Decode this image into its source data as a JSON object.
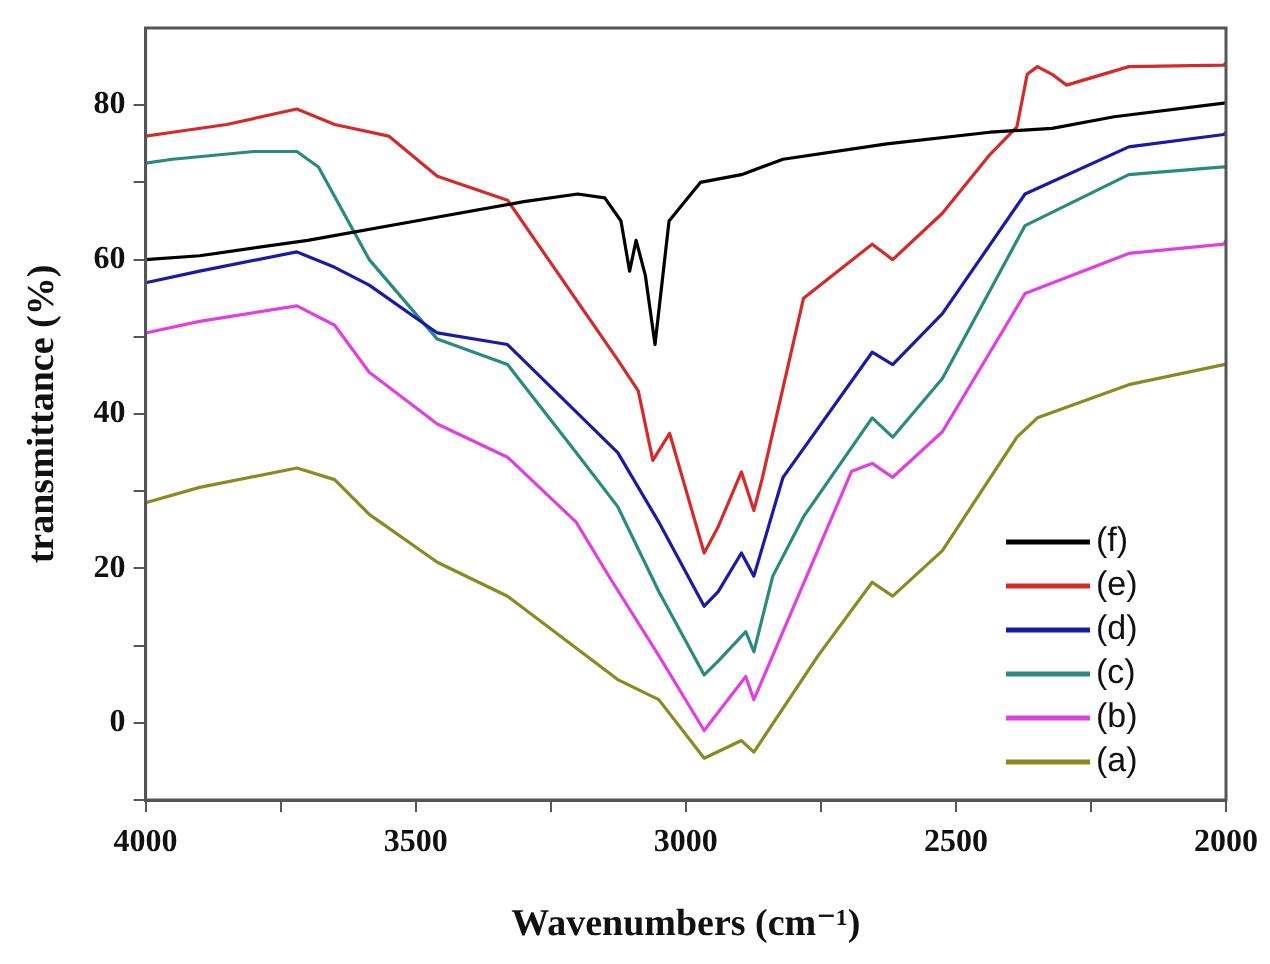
{
  "chart_data": {
    "type": "line",
    "xlabel": "Wavenumbers (cm⁻¹)",
    "ylabel": "transmittance (%)",
    "xlim": [
      4000,
      2000
    ],
    "xticks": [
      4000,
      {
        "value": 3750,
        "label": null
      },
      3500,
      {
        "value": 3250,
        "label": null
      },
      3000,
      {
        "value": 2750,
        "label": null
      },
      2500,
      {
        "value": 2250,
        "label": null
      },
      2000
    ],
    "ylim": [
      -10,
      90
    ],
    "yticks": [
      {
        "value": -10,
        "label": null
      },
      0,
      {
        "value": 10,
        "label": null
      },
      20,
      {
        "value": 30,
        "label": null
      },
      40,
      {
        "value": 50,
        "label": null
      },
      60,
      {
        "value": 70,
        "label": null
      },
      80
    ],
    "grid": false,
    "legend": "bottom right",
    "marker": "none",
    "line_style": "solid",
    "series": [
      {
        "name": "(f)",
        "color": "#000000",
        "x": [
          4000,
          3900,
          3700,
          3500,
          3300,
          3200,
          3150,
          3120,
          3104,
          3092,
          3075,
          3057,
          3031,
          2973,
          2897,
          2820,
          2628,
          2437,
          2322,
          2207,
          2000
        ],
        "values": [
          60,
          60.5,
          62.5,
          65,
          67.5,
          68.5,
          68,
          65,
          58.5,
          62.5,
          58,
          49,
          65,
          70,
          71,
          73,
          75,
          76.5,
          77,
          78.5,
          80.3
        ]
      },
      {
        "name": "(e)",
        "color": "#d42a2a",
        "x": [
          4000,
          3950,
          3850,
          3720,
          3650,
          3550,
          3460,
          3330,
          3126,
          3088,
          3061,
          3030,
          2966,
          2940,
          2897,
          2874,
          2858,
          2782,
          2655,
          2617,
          2525,
          2437,
          2387,
          2368,
          2349,
          2322,
          2295,
          2180,
          2004,
          2000
        ],
        "values": [
          76,
          76.5,
          77.5,
          79.5,
          77.5,
          76,
          70.8,
          67.7,
          47,
          43,
          34,
          37.5,
          22,
          25.4,
          32.5,
          27.5,
          31.8,
          55,
          62,
          60,
          66,
          73.6,
          77.2,
          84,
          85,
          84,
          82.6,
          85,
          85.2,
          85.5
        ]
      },
      {
        "name": "(d)",
        "color": "#1a1aa8",
        "x": [
          4000,
          3900,
          3720,
          3650,
          3586,
          3460,
          3330,
          3126,
          3050,
          2966,
          2940,
          2897,
          2874,
          2820,
          2655,
          2617,
          2525,
          2372,
          2180,
          2004,
          2000
        ],
        "values": [
          57,
          58.5,
          61,
          59,
          56.7,
          50.5,
          49,
          35,
          26,
          15.1,
          17,
          22,
          19,
          31.8,
          48,
          46.4,
          53,
          68.5,
          74.6,
          76.2,
          76.5
        ]
      },
      {
        "name": "(c)",
        "color": "#2a8a80",
        "x": [
          4000,
          3950,
          3800,
          3720,
          3680,
          3586,
          3460,
          3330,
          3203,
          3126,
          3050,
          2966,
          2940,
          2889,
          2874,
          2839,
          2782,
          2655,
          2617,
          2525,
          2372,
          2180,
          2004,
          2000
        ],
        "values": [
          72.5,
          73,
          74,
          74,
          72,
          60,
          49.7,
          46.4,
          35,
          28,
          17,
          6.2,
          8,
          11.8,
          9.2,
          19,
          26.7,
          39.5,
          37,
          44.6,
          64.4,
          71,
          72,
          72
        ]
      },
      {
        "name": "(b)",
        "color": "#e040e0",
        "x": [
          4000,
          3900,
          3720,
          3650,
          3586,
          3460,
          3330,
          3203,
          3138,
          3050,
          2966,
          2889,
          2874,
          2693,
          2655,
          2617,
          2525,
          2372,
          2180,
          2004,
          2000
        ],
        "values": [
          50.5,
          52,
          54,
          51.5,
          45.4,
          38.7,
          34.4,
          26,
          18.5,
          8.7,
          -1,
          6,
          3,
          32.6,
          33.6,
          31.8,
          37.7,
          55.6,
          60.8,
          62,
          62.5
        ]
      },
      {
        "name": "(a)",
        "color": "#8a8a20",
        "x": [
          4000,
          3900,
          3720,
          3650,
          3586,
          3460,
          3330,
          3126,
          3050,
          2966,
          2897,
          2874,
          2755,
          2655,
          2617,
          2525,
          2387,
          2349,
          2180,
          2004,
          2000
        ],
        "values": [
          28.5,
          30.5,
          33,
          31.5,
          27,
          20.8,
          16.4,
          5.6,
          3,
          -4.6,
          -2.3,
          -3.8,
          8.7,
          18.2,
          16.4,
          22.3,
          37,
          39.5,
          43.8,
          46.4,
          46.5
        ]
      }
    ]
  }
}
